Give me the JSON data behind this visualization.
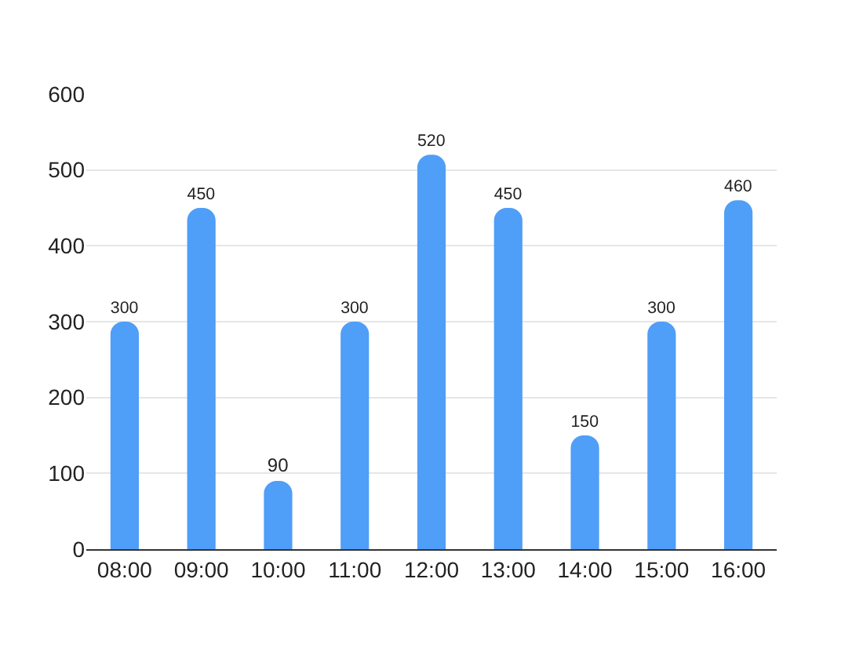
{
  "chart_data": {
    "type": "bar",
    "categories": [
      "08:00",
      "09:00",
      "10:00",
      "11:00",
      "12:00",
      "13:00",
      "14:00",
      "15:00",
      "16:00"
    ],
    "values": [
      300,
      450,
      90,
      300,
      520,
      450,
      150,
      300,
      460
    ],
    "color": "#4f9ef8",
    "ylim": [
      0,
      600
    ],
    "yticks": [
      0,
      100,
      200,
      300,
      400,
      500,
      600
    ],
    "grid": "y",
    "data_labels": true
  }
}
